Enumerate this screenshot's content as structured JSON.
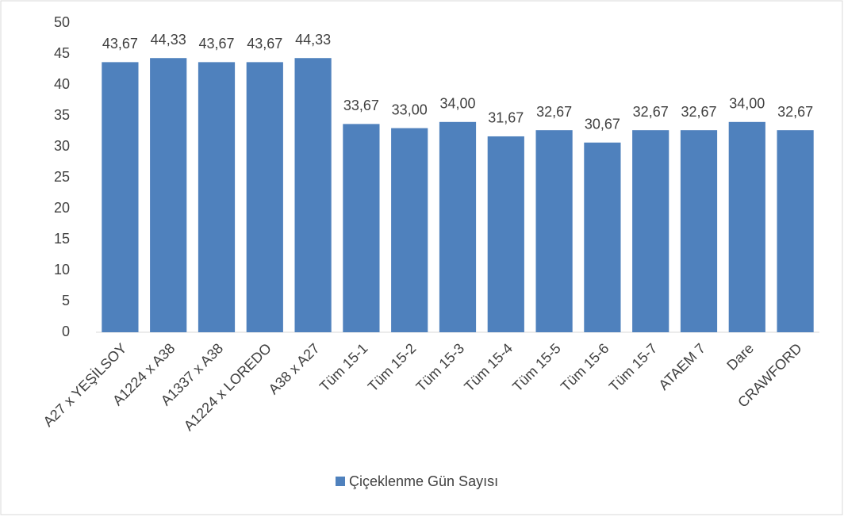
{
  "chart_data": {
    "type": "bar",
    "categories": [
      "A27 x YEŞİLSOY",
      "A1224 x A38",
      "A1337 x A38",
      "A1224 x LOREDO",
      "A38 x A27",
      "Tüm 15-1",
      "Tüm 15-2",
      "Tüm 15-3",
      "Tüm 15-4",
      "Tüm 15-5",
      "Tüm 15-6",
      "Tüm 15-7",
      "ATAEM 7",
      "Dare",
      "CRAWFORD"
    ],
    "series": [
      {
        "name": "Çiçeklenme Gün Sayısı",
        "color": "#4f81bd",
        "values": [
          43.67,
          44.33,
          43.67,
          43.67,
          44.33,
          33.67,
          33.0,
          34.0,
          31.67,
          32.67,
          30.67,
          32.67,
          32.67,
          34.0,
          32.67
        ],
        "value_labels": [
          "43,67",
          "44,33",
          "43,67",
          "43,67",
          "44,33",
          "33,67",
          "33,00",
          "34,00",
          "31,67",
          "32,67",
          "30,67",
          "32,67",
          "32,67",
          "34,00",
          "32,67"
        ]
      }
    ],
    "ylim": [
      0,
      50
    ],
    "yticks": [
      0,
      5,
      10,
      15,
      20,
      25,
      30,
      35,
      40,
      45,
      50
    ],
    "grid": false,
    "legend": "bottom"
  }
}
